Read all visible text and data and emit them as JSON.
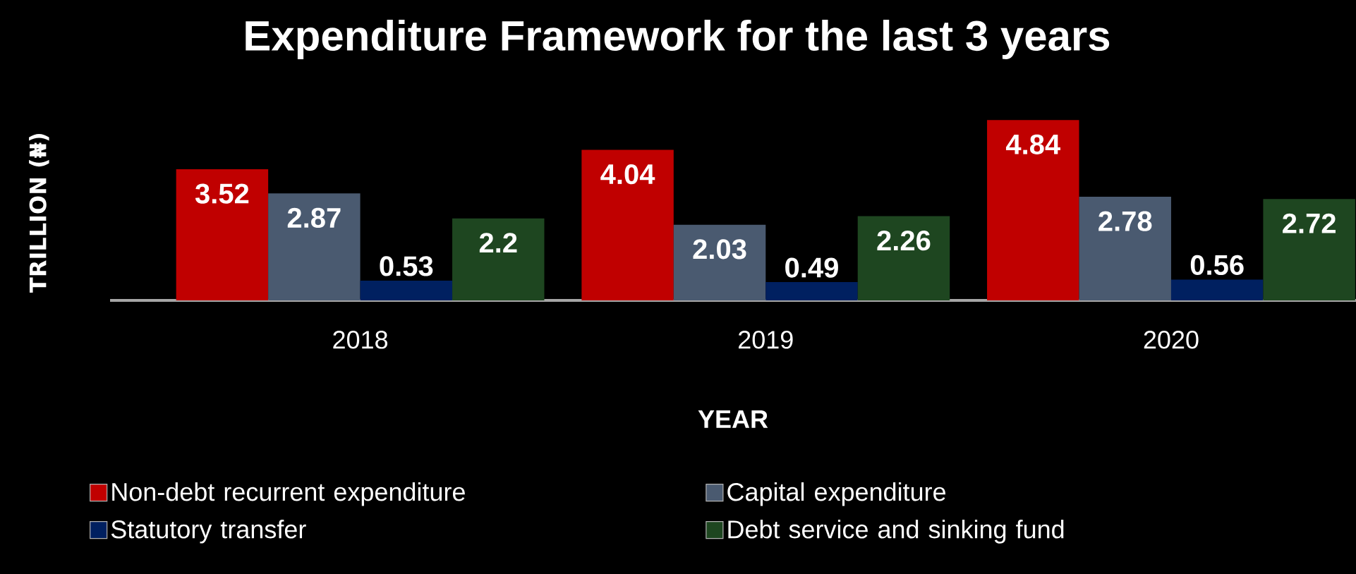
{
  "chart_data": {
    "type": "bar",
    "title": "Expenditure Framework for the last 3 years",
    "xlabel": "YEAR",
    "ylabel": "TRILLION (₦)",
    "categories": [
      "2018",
      "2019",
      "2020"
    ],
    "series": [
      {
        "name": "Non-debt recurrent expenditure",
        "color": "#c00000",
        "values": [
          3.52,
          4.04,
          4.84
        ]
      },
      {
        "name": "Capital expenditure",
        "color": "#4a5a70",
        "values": [
          2.87,
          2.03,
          2.78
        ]
      },
      {
        "name": "Statutory transfer",
        "color": "#002060",
        "values": [
          0.53,
          0.49,
          0.56
        ]
      },
      {
        "name": "Debt service and sinking fund",
        "color": "#1e4620",
        "values": [
          2.2,
          2.26,
          2.72
        ]
      }
    ],
    "tick_labels": "x",
    "legend": "bottom",
    "data_labels": true
  }
}
